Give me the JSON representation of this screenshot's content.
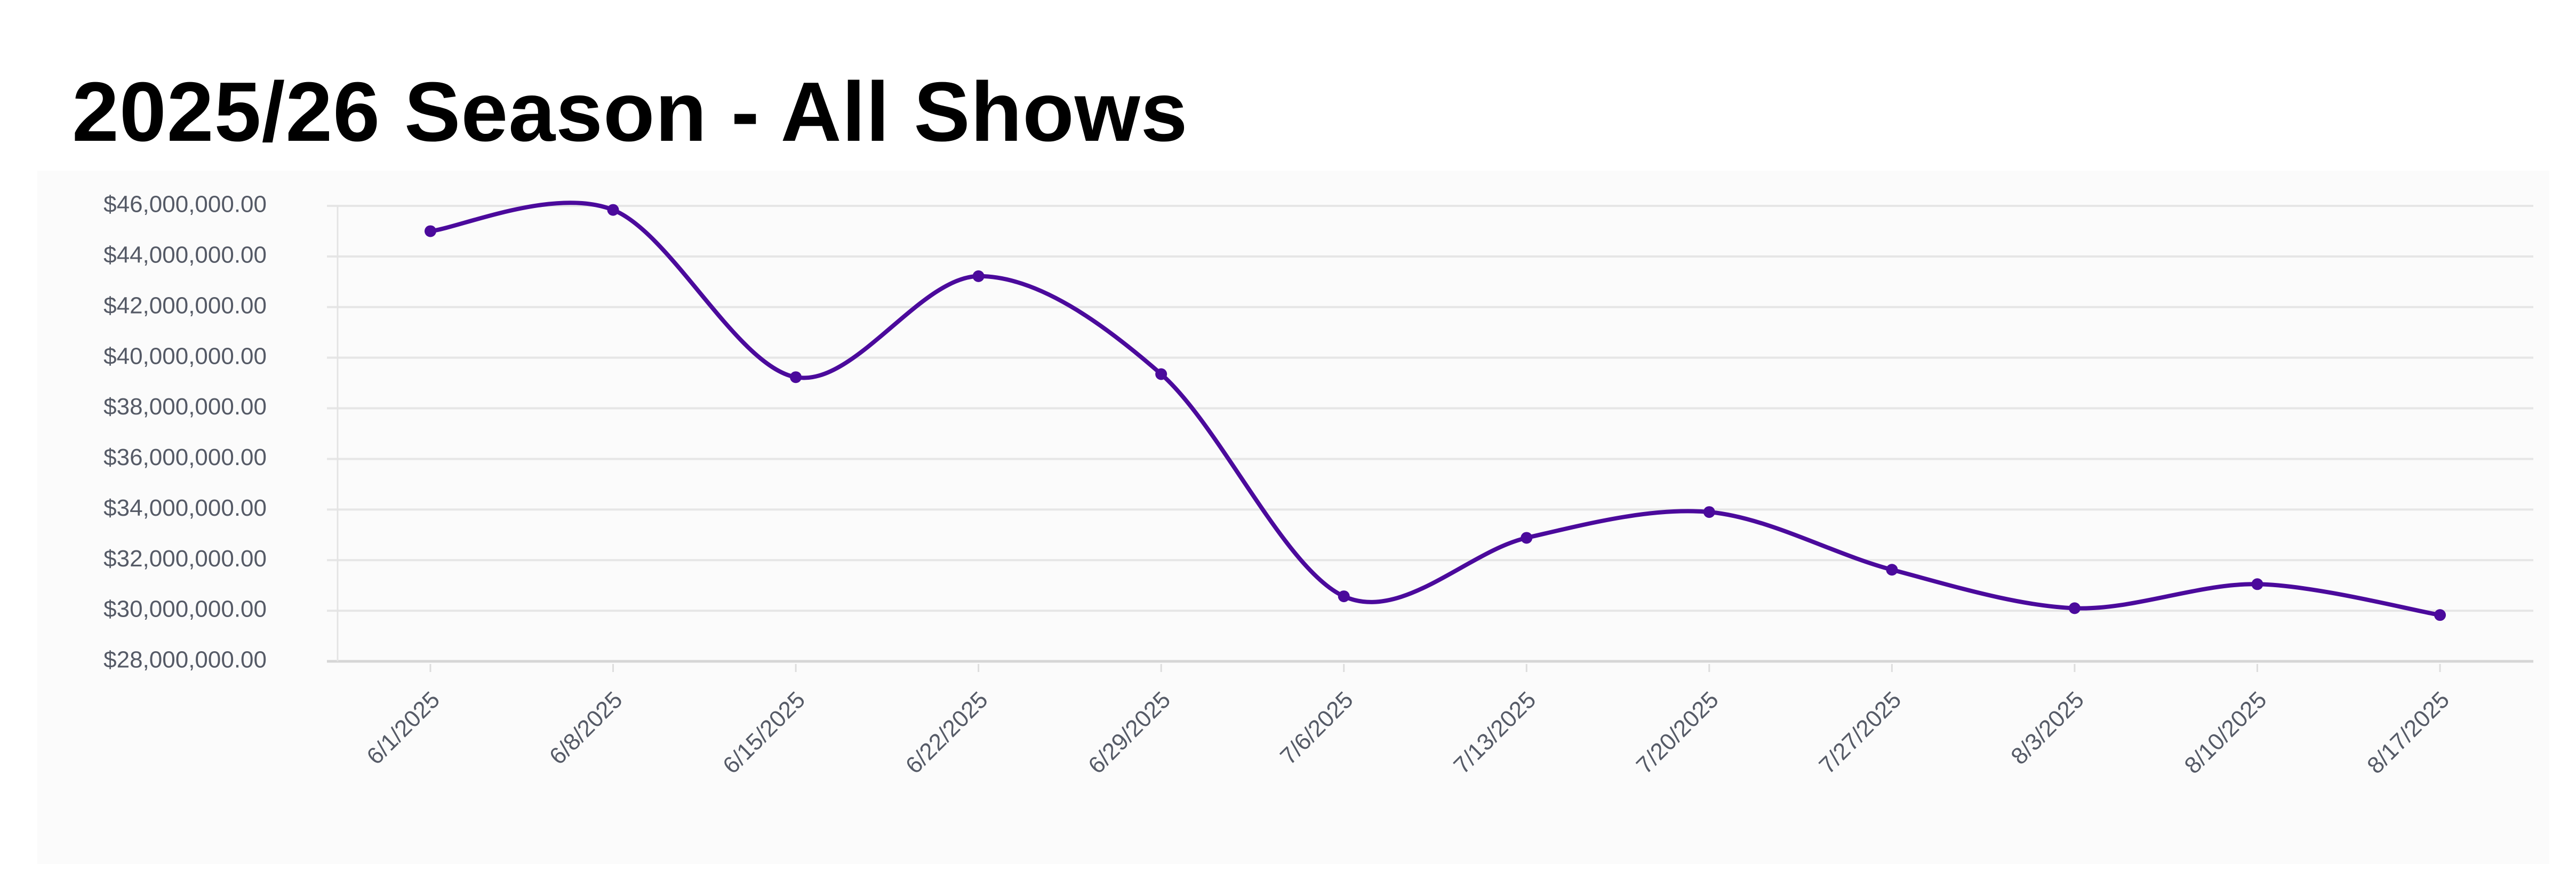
{
  "title": "2025/26 Season - All Shows",
  "chart_data": {
    "type": "line",
    "title": "2025/26 Season - All Shows",
    "xlabel": "",
    "ylabel": "",
    "categories": [
      "6/1/2025",
      "6/8/2025",
      "6/15/2025",
      "6/22/2025",
      "6/29/2025",
      "7/6/2025",
      "7/13/2025",
      "7/20/2025",
      "7/27/2025",
      "8/3/2025",
      "8/10/2025",
      "8/17/2025"
    ],
    "series": [
      {
        "name": "All Shows",
        "color": "#4b0a9c",
        "values": [
          45000000,
          45840000,
          39230000,
          43220000,
          39350000,
          30570000,
          32880000,
          33900000,
          31620000,
          30100000,
          31050000,
          29830000
        ]
      }
    ],
    "ylim": [
      28000000,
      46000000
    ],
    "yticks": [
      28000000,
      30000000,
      32000000,
      34000000,
      36000000,
      38000000,
      40000000,
      42000000,
      44000000,
      46000000
    ],
    "ytick_labels": [
      "$28,000,000.00",
      "$30,000,000.00",
      "$32,000,000.00",
      "$34,000,000.00",
      "$36,000,000.00",
      "$38,000,000.00",
      "$40,000,000.00",
      "$42,000,000.00",
      "$44,000,000.00",
      "$46,000,000.00"
    ],
    "grid": true,
    "legend": "none"
  }
}
